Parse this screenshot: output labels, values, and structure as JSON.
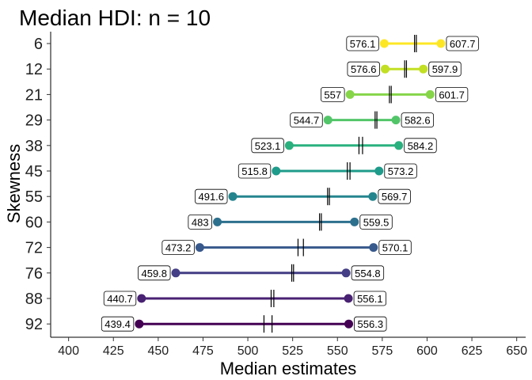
{
  "chart_data": {
    "type": "dumbbell",
    "title": "Median HDI: n = 10",
    "xlabel": "Median estimates",
    "ylabel": "Skewness",
    "xlim": [
      390,
      655
    ],
    "xticks": [
      400,
      425,
      450,
      475,
      500,
      525,
      550,
      575,
      600,
      625,
      650
    ],
    "grid": false,
    "legend": "none",
    "rows": [
      {
        "skewness": "6",
        "lower": 576.1,
        "upper": 607.7,
        "lower_label": "576.1",
        "upper_label": "607.7",
        "marks": [
          593.0,
          594.0
        ],
        "color": "#fde725"
      },
      {
        "skewness": "12",
        "lower": 576.6,
        "upper": 597.9,
        "lower_label": "576.6",
        "upper_label": "597.9",
        "marks": [
          587.5,
          588.5
        ],
        "color": "#c2df23"
      },
      {
        "skewness": "21",
        "lower": 557,
        "upper": 601.7,
        "lower_label": "557",
        "upper_label": "601.7",
        "marks": [
          579.0,
          580.0
        ],
        "color": "#86d549"
      },
      {
        "skewness": "29",
        "lower": 544.7,
        "upper": 582.6,
        "lower_label": "544.7",
        "upper_label": "582.6",
        "marks": [
          571.0,
          572.0
        ],
        "color": "#52c569"
      },
      {
        "skewness": "38",
        "lower": 523.1,
        "upper": 584.2,
        "lower_label": "523.1",
        "upper_label": "584.2",
        "marks": [
          562.0,
          564.0
        ],
        "color": "#2ab07f"
      },
      {
        "skewness": "45",
        "lower": 515.8,
        "upper": 573.2,
        "lower_label": "515.8",
        "upper_label": "573.2",
        "marks": [
          555.5,
          557.0
        ],
        "color": "#1e9b8a"
      },
      {
        "skewness": "55",
        "lower": 491.6,
        "upper": 569.7,
        "lower_label": "491.6",
        "upper_label": "569.7",
        "marks": [
          544.5,
          545.5
        ],
        "color": "#25858e"
      },
      {
        "skewness": "60",
        "lower": 483,
        "upper": 559.5,
        "lower_label": "483",
        "upper_label": "559.5",
        "marks": [
          540.0,
          541.0
        ],
        "color": "#2d708e"
      },
      {
        "skewness": "72",
        "lower": 473.2,
        "upper": 570.1,
        "lower_label": "473.2",
        "upper_label": "570.1",
        "marks": [
          528.0,
          531.0
        ],
        "color": "#38598c"
      },
      {
        "skewness": "76",
        "lower": 459.8,
        "upper": 554.8,
        "lower_label": "459.8",
        "upper_label": "554.8",
        "marks": [
          524.5,
          525.5
        ],
        "color": "#433e85"
      },
      {
        "skewness": "88",
        "lower": 440.7,
        "upper": 556.1,
        "lower_label": "440.7",
        "upper_label": "556.1",
        "marks": [
          513.0,
          514.5
        ],
        "color": "#482173"
      },
      {
        "skewness": "92",
        "lower": 439.4,
        "upper": 556.3,
        "lower_label": "439.4",
        "upper_label": "556.3",
        "marks": [
          509.0,
          513.5
        ],
        "color": "#440154"
      }
    ]
  }
}
